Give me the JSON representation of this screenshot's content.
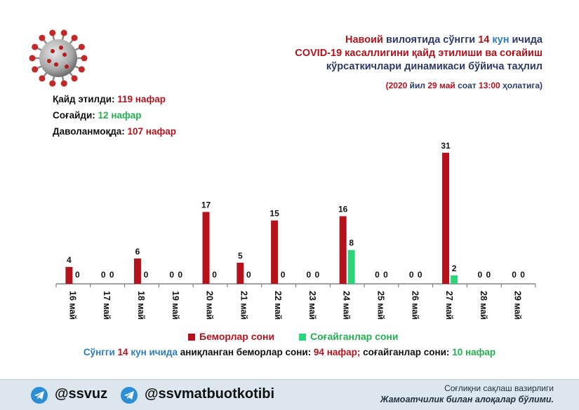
{
  "header": {
    "line1": [
      {
        "text": "Навоий",
        "style": "red"
      },
      {
        "text": " вилоятида сўнгги ",
        "style": "dark"
      },
      {
        "text": "14",
        "style": "red"
      },
      {
        "text": " кун",
        "style": "blue"
      },
      {
        "text": " ичида",
        "style": "dark"
      }
    ],
    "line2": [
      {
        "text": "COVID-19",
        "style": "red"
      },
      {
        "text": " касаллигини қайд этилиши ва соғайиш",
        "style": "red"
      }
    ],
    "line3": "кўрсаткичлари динамикаси бўйича таҳлил",
    "date_line": [
      {
        "text": "(2020",
        "style": "red"
      },
      {
        "text": " йил ",
        "style": "dark"
      },
      {
        "text": "29 май",
        "style": "red"
      },
      {
        "text": " соат ",
        "style": "dark"
      },
      {
        "text": "13:00",
        "style": "red"
      },
      {
        "text": " ҳолатига)",
        "style": "dark"
      }
    ]
  },
  "stats": [
    {
      "label": "Қайд этилди: ",
      "value": "119 нафар",
      "color": "#b5121b"
    },
    {
      "label": "Соғайди: ",
      "value": "12 нафар",
      "color": "#21b14c"
    },
    {
      "label": "Даволанмоқда: ",
      "value": "107 нафар",
      "color": "#b5121b"
    }
  ],
  "chart_data": {
    "type": "bar",
    "title": "",
    "xlabel": "",
    "ylabel": "",
    "ylim": [
      0,
      31
    ],
    "categories": [
      "16 май",
      "17 май",
      "18 май",
      "19 май",
      "20 май",
      "21 май",
      "22 май",
      "23 май",
      "24 май",
      "25 май",
      "26 май",
      "27 май",
      "28 май",
      "29 май"
    ],
    "series": [
      {
        "name": "Беморлар сони",
        "color": "#b5121b",
        "values": [
          4,
          0,
          6,
          0,
          17,
          5,
          15,
          0,
          16,
          0,
          0,
          31,
          0,
          0
        ]
      },
      {
        "name": "Соғайганлар сони",
        "color": "#2ed47a",
        "values": [
          0,
          0,
          0,
          0,
          0,
          0,
          0,
          0,
          8,
          0,
          0,
          2,
          0,
          0
        ]
      }
    ],
    "legend": "bottom-center"
  },
  "summary": [
    {
      "text": "Сўнгги ",
      "color": "#2a7dc1"
    },
    {
      "text": "14",
      "color": "#b5121b"
    },
    {
      "text": " кун ичида",
      "color": "#2a7dc1"
    },
    {
      "text": " аниқланган беморлар сони: ",
      "color": "#111111"
    },
    {
      "text": "94 нафар;",
      "color": "#b5121b"
    },
    {
      "text": " соғайганлар сони: ",
      "color": "#111111"
    },
    {
      "text": "10 нафар",
      "color": "#21b14c"
    }
  ],
  "footer": {
    "handle1": "@ssvuz",
    "handle2": "@ssvmatbuotkotibi",
    "ministry_line1": "Соғлиқни сақлаш вазирлиги",
    "ministry_line2": "Жамоатчилик билан алоқалар бўлими."
  },
  "colors": {
    "red": "#b5121b",
    "green": "#2ed47a",
    "blue": "#2a7dc1",
    "dark": "#2b3a6e"
  }
}
